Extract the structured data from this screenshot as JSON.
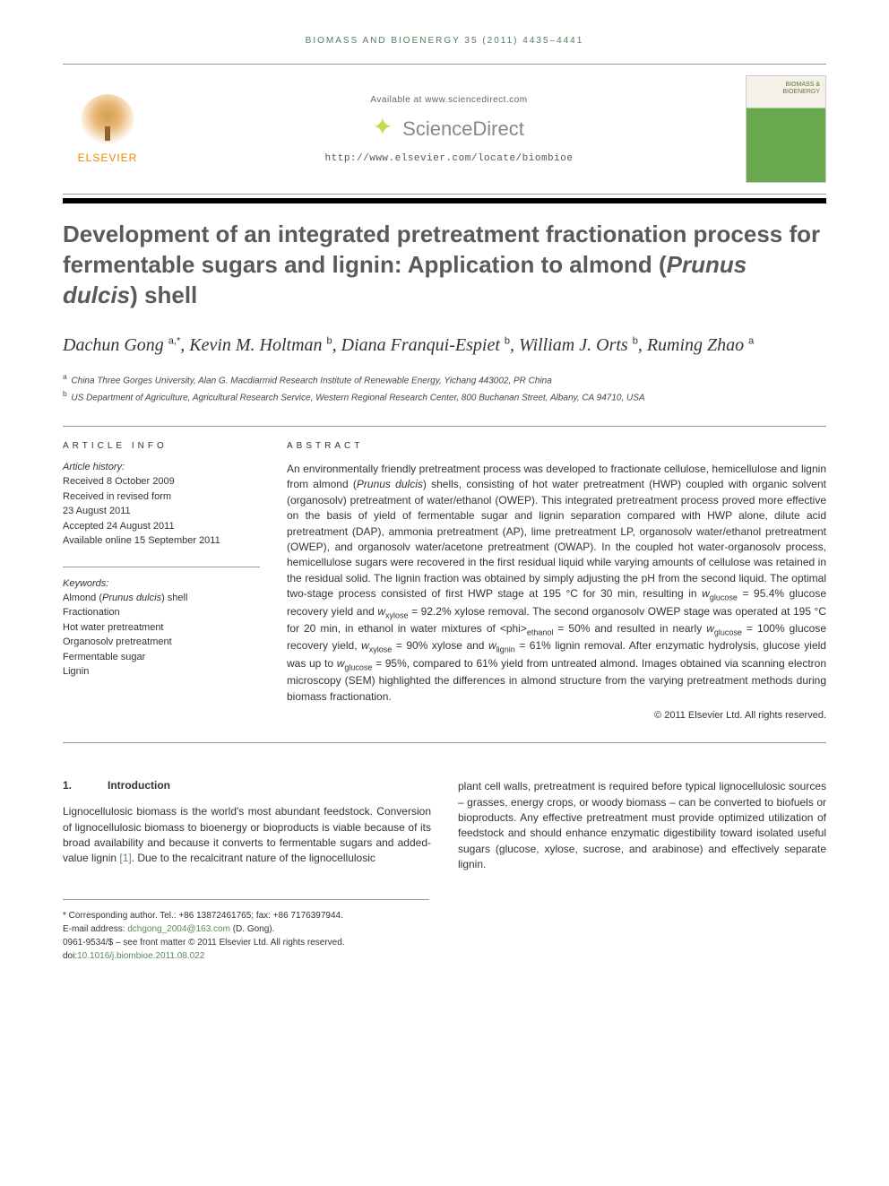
{
  "journal_header": "BIOMASS AND BIOENERGY 35 (2011) 4435–4441",
  "header": {
    "available_at": "Available at www.sciencedirect.com",
    "sciencedirect": "ScienceDirect",
    "journal_url": "http://www.elsevier.com/locate/biombioe",
    "elsevier": "ELSEVIER",
    "cover_title": "BIOMASS & BIOENERGY"
  },
  "title_parts": {
    "p1": "Development of an integrated pretreatment fractionation process for fermentable sugars and lignin: Application to almond (",
    "p2": "Prunus dulcis",
    "p3": ") shell"
  },
  "authors_html": "Dachun Gong <sup>a,*</sup>, Kevin M. Holtman <sup>b</sup>, Diana Franqui-Espiet <sup>b</sup>, William J. Orts <sup>b</sup>, Ruming Zhao <sup>a</sup>",
  "affiliations": [
    {
      "sup": "a",
      "text": "China Three Gorges University, Alan G. Macdiarmid Research Institute of Renewable Energy, Yichang 443002, PR China"
    },
    {
      "sup": "b",
      "text": "US Department of Agriculture, Agricultural Research Service, Western Regional Research Center, 800 Buchanan Street, Albany, CA 94710, USA"
    }
  ],
  "article_info": {
    "heading": "ARTICLE INFO",
    "history_label": "Article history:",
    "history": [
      "Received 8 October 2009",
      "Received in revised form",
      "23 August 2011",
      "Accepted 24 August 2011",
      "Available online 15 September 2011"
    ],
    "keywords_label": "Keywords:",
    "keywords": [
      "Almond (Prunus dulcis) shell",
      "Fractionation",
      "Hot water pretreatment",
      "Organosolv pretreatment",
      "Fermentable sugar",
      "Lignin"
    ]
  },
  "abstract": {
    "heading": "ABSTRACT",
    "text": "An environmentally friendly pretreatment process was developed to fractionate cellulose, hemicellulose and lignin from almond (Prunus dulcis) shells, consisting of hot water pretreatment (HWP) coupled with organic solvent (organosolv) pretreatment of water/ethanol (OWEP). This integrated pretreatment process proved more effective on the basis of yield of fermentable sugar and lignin separation compared with HWP alone, dilute acid pretreatment (DAP), ammonia pretreatment (AP), lime pretreatment LP, organosolv water/ethanol pretreatment (OWEP), and organosolv water/acetone pretreatment (OWAP). In the coupled hot water-organosolv process, hemicellulose sugars were recovered in the first residual liquid while varying amounts of cellulose was retained in the residual solid. The lignin fraction was obtained by simply adjusting the pH from the second liquid. The optimal two-stage process consisted of first HWP stage at 195 °C for 30 min, resulting in wglucose = 95.4% glucose recovery yield and wxylose = 92.2% xylose removal. The second organosolv OWEP stage was operated at 195 °C for 20 min, in ethanol in water mixtures of <phi>ethanol = 50% and resulted in nearly wglucose = 100% glucose recovery yield, wxylose = 90% xylose and wlignin = 61% lignin removal. After enzymatic hydrolysis, glucose yield was up to wglucose = 95%, compared to 61% yield from untreated almond. Images obtained via scanning electron microscopy (SEM) highlighted the differences in almond structure from the varying pretreatment methods during biomass fractionation.",
    "copyright": "© 2011 Elsevier Ltd. All rights reserved."
  },
  "intro": {
    "number": "1.",
    "title": "Introduction",
    "col1": "Lignocellulosic biomass is the world's most abundant feedstock. Conversion of lignocellulosic biomass to bioenergy or bioproducts is viable because of its broad availability and because it converts to fermentable sugars and added-value lignin [1]. Due to the recalcitrant nature of the lignocellulosic",
    "col2": "plant cell walls, pretreatment is required before typical lignocellulosic sources – grasses, energy crops, or woody biomass – can be converted to biofuels or bioproducts. Any effective pretreatment must provide optimized utilization of feedstock and should enhance enzymatic digestibility toward isolated useful sugars (glucose, xylose, sucrose, and arabinose) and effectively separate lignin."
  },
  "footer": {
    "corresponding": "* Corresponding author. Tel.: +86 13872461765; fax: +86 7176397944.",
    "email_label": "E-mail address: ",
    "email": "dchgong_2004@163.com",
    "email_suffix": " (D. Gong).",
    "issn": "0961-9534/$ – see front matter © 2011 Elsevier Ltd. All rights reserved.",
    "doi_label": "doi:",
    "doi": "10.1016/j.biombioe.2011.08.022"
  },
  "colors": {
    "heading_gray": "#5a5a5a",
    "link_green": "#5a8a5a",
    "elsevier_orange": "#e68a00"
  }
}
